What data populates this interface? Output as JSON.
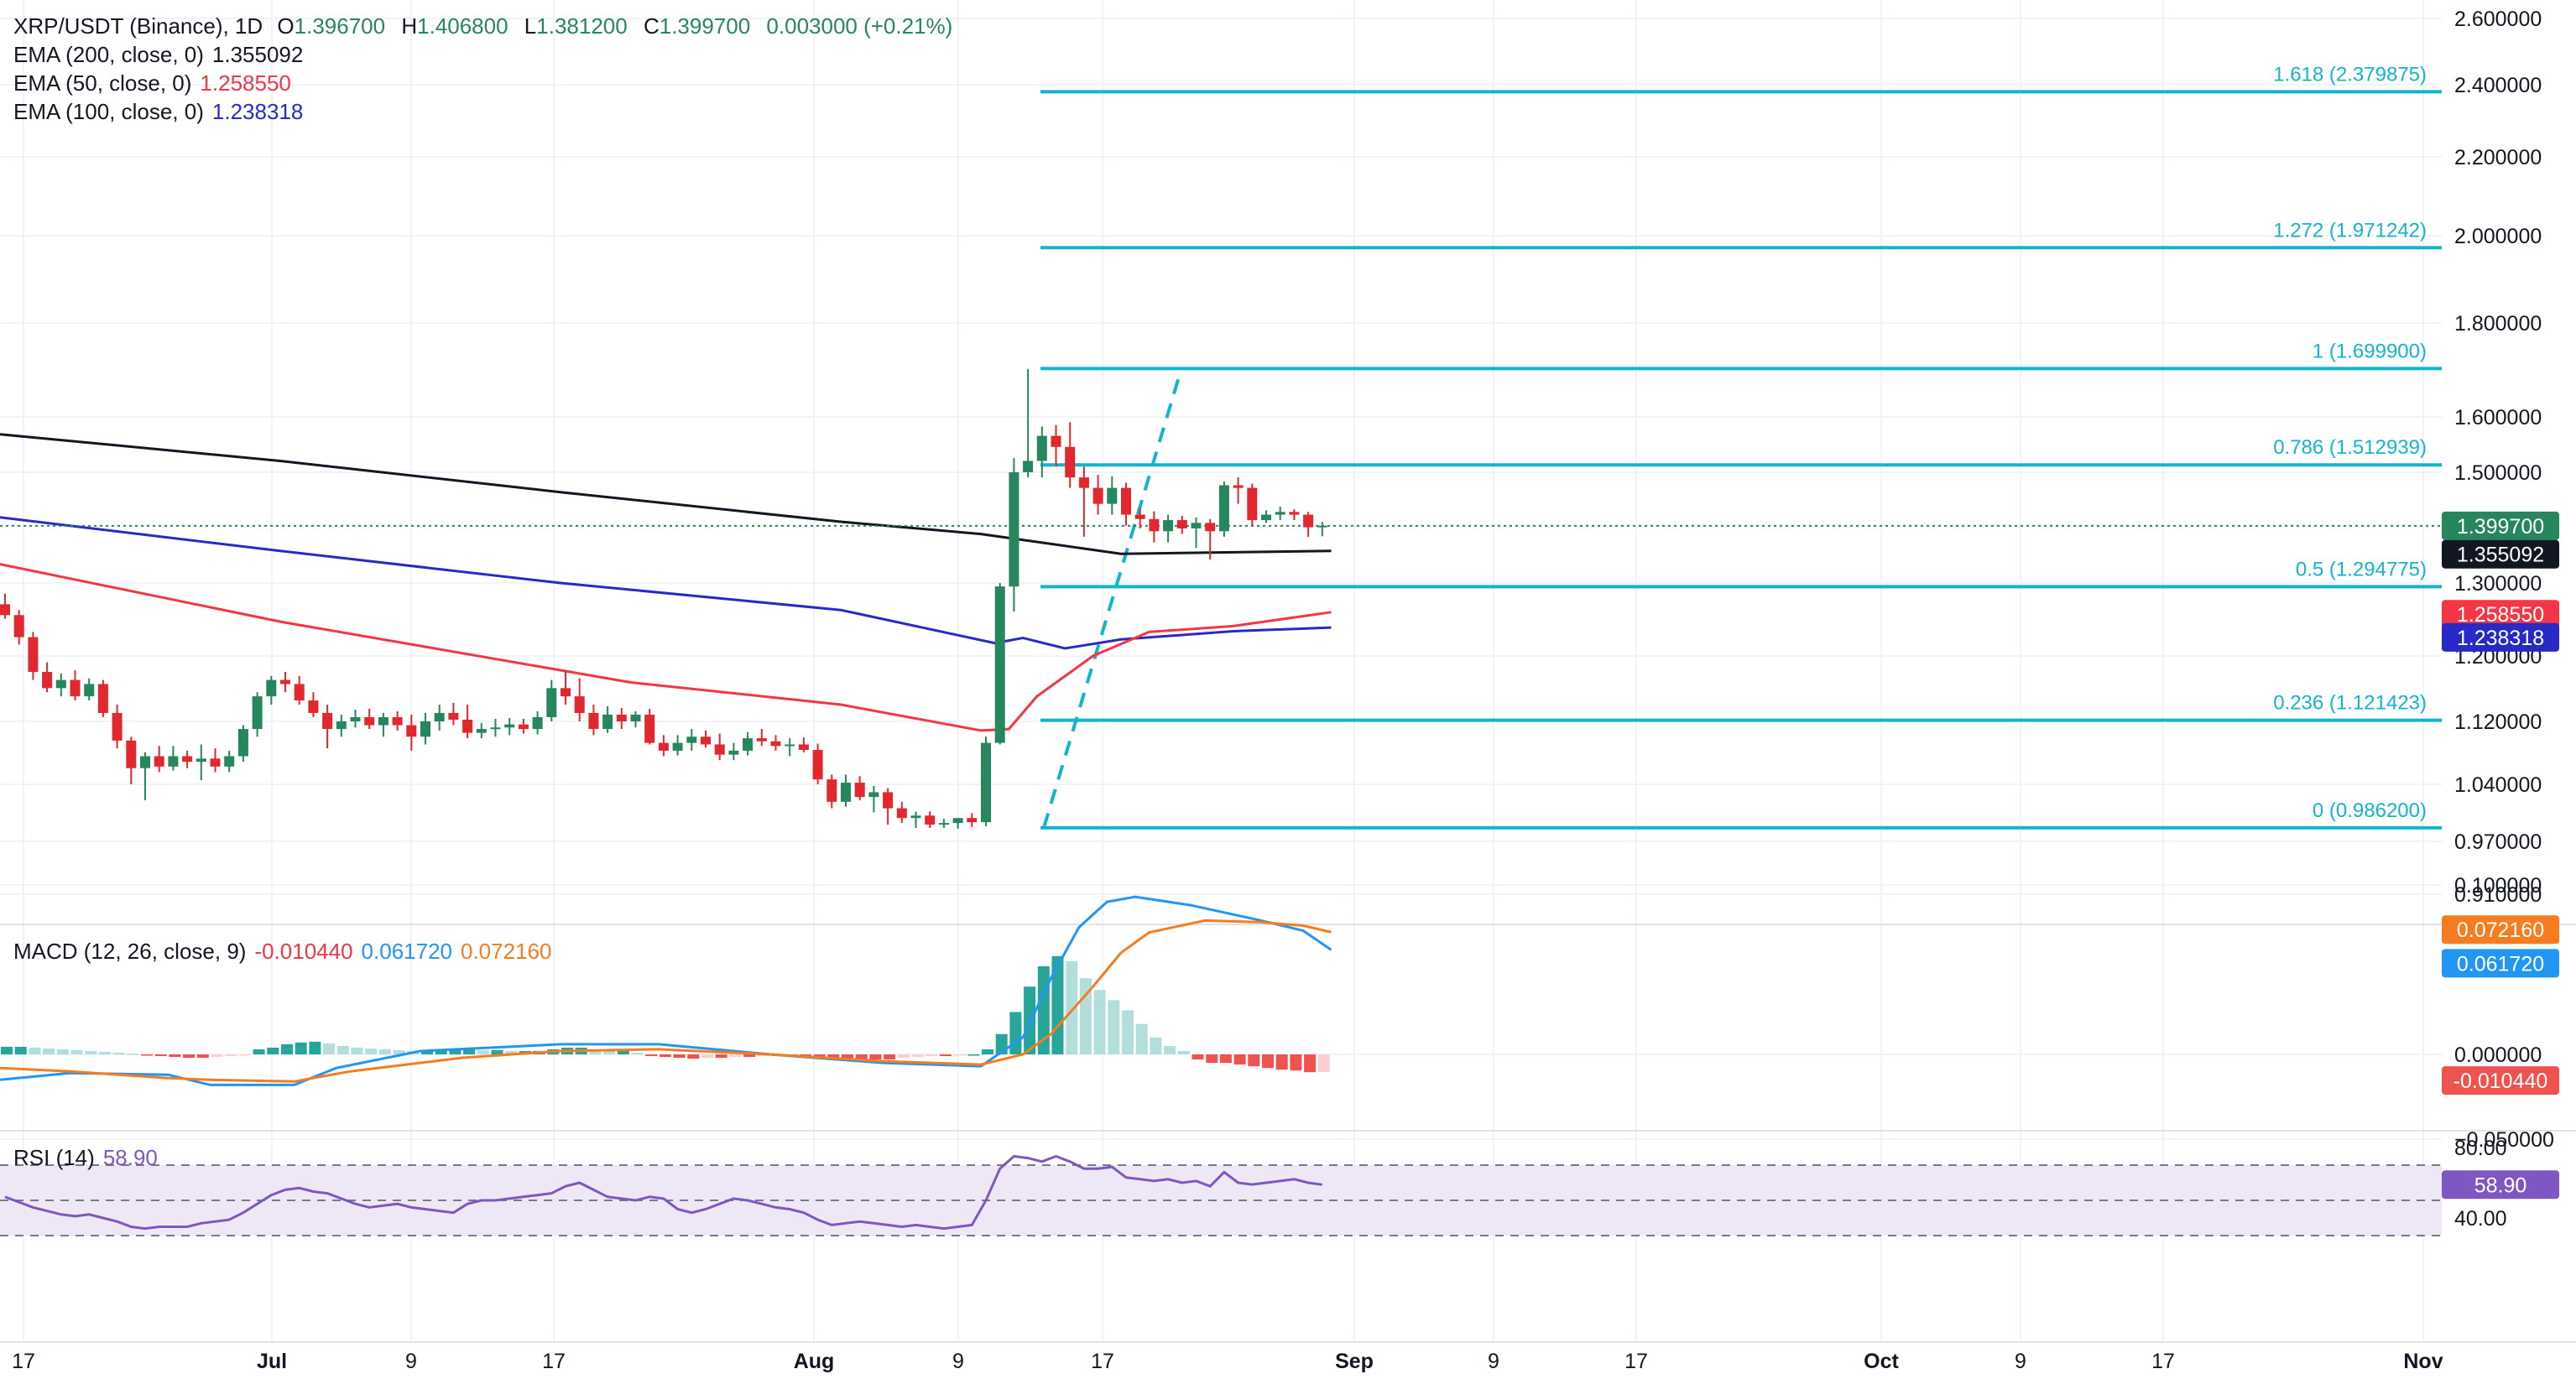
{
  "header": {
    "symbol": "XRP/USDT (Binance), 1D",
    "o_label": "O",
    "o_val": "1.396700",
    "h_label": "H",
    "h_val": "1.406800",
    "l_label": "L",
    "l_val": "1.381200",
    "c_label": "C",
    "c_val": "1.399700",
    "change": "0.003000 (+0.21%)",
    "ema200_label": "EMA (200, close, 0)",
    "ema200_val": "1.355092",
    "ema50_label": "EMA (50, close, 0)",
    "ema50_val": "1.258550",
    "ema100_label": "EMA (100, close, 0)",
    "ema100_val": "1.238318"
  },
  "macd_legend": {
    "label": "MACD (12, 26, close, 9)",
    "hist": "-0.010440",
    "macd": "0.061720",
    "signal": "0.072160"
  },
  "rsi_legend": {
    "label": "RSI (14)",
    "value": "58.90"
  },
  "colors": {
    "up": "#26875f",
    "down": "#e0282e",
    "fib": "#12b5c9",
    "ema200": "#131722",
    "ema50": "#f23645",
    "ema100": "#2929c8",
    "macd_line": "#2196f3",
    "signal_line": "#f57c1f",
    "hist_up_strong": "#26a69a",
    "hist_up_weak": "#b2dfdb",
    "hist_down_strong": "#ef5350",
    "hist_down_weak": "#ffcdd2",
    "rsi": "#7e57c2",
    "rsi_band": "#ede7f6"
  },
  "price_axis": {
    "ticks": [
      "2.600000",
      "2.400000",
      "2.200000",
      "2.000000",
      "1.800000",
      "1.600000",
      "1.500000",
      "1.300000",
      "1.200000",
      "1.120000",
      "1.040000",
      "0.970000",
      "0.910000"
    ],
    "current_price": "1.399700",
    "ema200_tag": "1.355092",
    "ema50_tag": "1.258550",
    "ema100_tag": "1.238318"
  },
  "macd_axis": {
    "ticks": [
      "0.100000",
      "0.000000",
      "−0.050000"
    ],
    "tags": [
      "0.072160",
      "0.061720",
      "-0.010440"
    ]
  },
  "rsi_axis": {
    "ticks": [
      "80.00",
      "40.00"
    ],
    "tag": "58.90"
  },
  "time_axis": [
    "17",
    "Jul",
    "9",
    "17",
    "Aug",
    "9",
    "17",
    "Sep",
    "9",
    "17",
    "Oct",
    "9",
    "17",
    "Nov"
  ],
  "fib_labels": [
    "1.618 (2.379875)",
    "1.272 (1.971242)",
    "1 (1.699900)",
    "0.786 (1.512939)",
    "0.5 (1.294775)",
    "0.236 (1.121423)",
    "0 (0.986200)"
  ],
  "chart_data": {
    "type": "candlestick",
    "title": "XRP/USDT (Binance), 1D",
    "x_start": "Jun 17",
    "x_end": "Nov",
    "candles": [
      [
        1.27,
        1.285,
        1.25,
        1.255
      ],
      [
        1.255,
        1.262,
        1.215,
        1.225
      ],
      [
        1.225,
        1.232,
        1.17,
        1.18
      ],
      [
        1.18,
        1.192,
        1.155,
        1.16
      ],
      [
        1.16,
        1.178,
        1.15,
        1.17
      ],
      [
        1.17,
        1.182,
        1.145,
        1.15
      ],
      [
        1.15,
        1.172,
        1.145,
        1.165
      ],
      [
        1.165,
        1.17,
        1.125,
        1.13
      ],
      [
        1.13,
        1.14,
        1.085,
        1.095
      ],
      [
        1.095,
        1.1,
        1.04,
        1.06
      ],
      [
        1.06,
        1.08,
        1.02,
        1.075
      ],
      [
        1.075,
        1.088,
        1.055,
        1.062
      ],
      [
        1.062,
        1.088,
        1.057,
        1.075
      ],
      [
        1.075,
        1.082,
        1.06,
        1.068
      ],
      [
        1.068,
        1.09,
        1.045,
        1.072
      ],
      [
        1.072,
        1.085,
        1.055,
        1.062
      ],
      [
        1.062,
        1.082,
        1.055,
        1.075
      ],
      [
        1.075,
        1.115,
        1.068,
        1.11
      ],
      [
        1.11,
        1.155,
        1.1,
        1.15
      ],
      [
        1.15,
        1.175,
        1.14,
        1.17
      ],
      [
        1.17,
        1.18,
        1.155,
        1.165
      ],
      [
        1.165,
        1.175,
        1.14,
        1.145
      ],
      [
        1.145,
        1.155,
        1.125,
        1.13
      ],
      [
        1.13,
        1.14,
        1.085,
        1.11
      ],
      [
        1.11,
        1.128,
        1.1,
        1.12
      ],
      [
        1.12,
        1.134,
        1.112,
        1.125
      ],
      [
        1.125,
        1.135,
        1.11,
        1.115
      ],
      [
        1.115,
        1.13,
        1.1,
        1.125
      ],
      [
        1.125,
        1.132,
        1.108,
        1.115
      ],
      [
        1.115,
        1.128,
        1.082,
        1.1
      ],
      [
        1.1,
        1.13,
        1.09,
        1.12
      ],
      [
        1.12,
        1.14,
        1.108,
        1.13
      ],
      [
        1.13,
        1.142,
        1.115,
        1.122
      ],
      [
        1.122,
        1.14,
        1.098,
        1.105
      ],
      [
        1.105,
        1.118,
        1.098,
        1.11
      ],
      [
        1.11,
        1.123,
        1.1,
        1.112
      ],
      [
        1.112,
        1.124,
        1.102,
        1.116
      ],
      [
        1.116,
        1.123,
        1.104,
        1.11
      ],
      [
        1.11,
        1.132,
        1.103,
        1.125
      ],
      [
        1.125,
        1.17,
        1.12,
        1.16
      ],
      [
        1.16,
        1.182,
        1.14,
        1.15
      ],
      [
        1.15,
        1.172,
        1.12,
        1.13
      ],
      [
        1.13,
        1.14,
        1.102,
        1.11
      ],
      [
        1.11,
        1.138,
        1.105,
        1.128
      ],
      [
        1.128,
        1.136,
        1.11,
        1.12
      ],
      [
        1.12,
        1.132,
        1.112,
        1.128
      ],
      [
        1.128,
        1.135,
        1.09,
        1.092
      ],
      [
        1.092,
        1.102,
        1.075,
        1.082
      ],
      [
        1.082,
        1.102,
        1.076,
        1.092
      ],
      [
        1.092,
        1.11,
        1.082,
        1.1
      ],
      [
        1.1,
        1.108,
        1.086,
        1.09
      ],
      [
        1.09,
        1.104,
        1.07,
        1.077
      ],
      [
        1.077,
        1.092,
        1.07,
        1.082
      ],
      [
        1.082,
        1.106,
        1.076,
        1.098
      ],
      [
        1.098,
        1.11,
        1.088,
        1.094
      ],
      [
        1.094,
        1.102,
        1.082,
        1.088
      ],
      [
        1.088,
        1.098,
        1.075,
        1.09
      ],
      [
        1.09,
        1.099,
        1.08,
        1.083
      ],
      [
        1.083,
        1.091,
        1.04,
        1.046
      ],
      [
        1.046,
        1.052,
        1.01,
        1.018
      ],
      [
        1.018,
        1.052,
        1.012,
        1.042
      ],
      [
        1.042,
        1.05,
        1.02,
        1.024
      ],
      [
        1.024,
        1.038,
        1.005,
        1.03
      ],
      [
        1.03,
        1.035,
        0.99,
        1.01
      ],
      [
        1.01,
        1.018,
        0.992,
        0.998
      ],
      [
        0.998,
        1.006,
        0.986,
        1.001
      ],
      [
        1.001,
        1.006,
        0.986,
        0.99
      ],
      [
        0.99,
        0.997,
        0.986,
        0.992
      ],
      [
        0.992,
        0.998,
        0.985,
        0.998
      ],
      [
        0.998,
        1.004,
        0.987,
        0.993
      ],
      [
        0.993,
        1.1,
        0.988,
        1.092
      ],
      [
        1.092,
        1.3,
        1.09,
        1.295
      ],
      [
        1.295,
        1.525,
        1.26,
        1.5
      ],
      [
        1.5,
        1.699,
        1.49,
        1.52
      ],
      [
        1.52,
        1.582,
        1.49,
        1.565
      ],
      [
        1.565,
        1.585,
        1.51,
        1.545
      ],
      [
        1.545,
        1.59,
        1.47,
        1.49
      ],
      [
        1.49,
        1.51,
        1.38,
        1.47
      ],
      [
        1.47,
        1.495,
        1.42,
        1.44
      ],
      [
        1.44,
        1.492,
        1.42,
        1.47
      ],
      [
        1.47,
        1.48,
        1.4,
        1.42
      ],
      [
        1.42,
        1.432,
        1.395,
        1.412
      ],
      [
        1.412,
        1.426,
        1.37,
        1.39
      ],
      [
        1.39,
        1.42,
        1.37,
        1.41
      ],
      [
        1.41,
        1.418,
        1.385,
        1.395
      ],
      [
        1.395,
        1.415,
        1.36,
        1.405
      ],
      [
        1.405,
        1.412,
        1.34,
        1.39
      ],
      [
        1.39,
        1.482,
        1.38,
        1.475
      ],
      [
        1.475,
        1.49,
        1.44,
        1.47
      ],
      [
        1.47,
        1.478,
        1.4,
        1.41
      ],
      [
        1.41,
        1.428,
        1.405,
        1.42
      ],
      [
        1.42,
        1.435,
        1.41,
        1.425
      ],
      [
        1.425,
        1.43,
        1.41,
        1.42
      ],
      [
        1.42,
        1.425,
        1.38,
        1.397
      ],
      [
        1.397,
        1.407,
        1.381,
        1.4
      ]
    ],
    "ema200": [
      [
        0,
        1.568
      ],
      [
        20,
        1.52
      ],
      [
        40,
        1.462
      ],
      [
        60,
        1.407
      ],
      [
        70,
        1.385
      ],
      [
        80,
        1.35
      ],
      [
        95,
        1.355
      ]
    ],
    "ema50": [
      [
        0,
        1.332
      ],
      [
        20,
        1.246
      ],
      [
        45,
        1.167
      ],
      [
        60,
        1.14
      ],
      [
        70,
        1.108
      ],
      [
        72,
        1.11
      ],
      [
        74,
        1.15
      ],
      [
        78,
        1.2
      ],
      [
        82,
        1.232
      ],
      [
        88,
        1.24
      ],
      [
        95,
        1.259
      ]
    ],
    "ema100": [
      [
        0,
        1.415
      ],
      [
        20,
        1.355
      ],
      [
        40,
        1.3
      ],
      [
        60,
        1.262
      ],
      [
        71,
        1.217
      ],
      [
        73,
        1.224
      ],
      [
        76,
        1.21
      ],
      [
        80,
        1.222
      ],
      [
        88,
        1.233
      ],
      [
        95,
        1.238
      ]
    ],
    "fib_levels": [
      {
        "ratio": 1.618,
        "price": 2.379875
      },
      {
        "ratio": 1.272,
        "price": 1.971242
      },
      {
        "ratio": 1,
        "price": 1.6999
      },
      {
        "ratio": 0.786,
        "price": 1.512939
      },
      {
        "ratio": 0.5,
        "price": 1.294775
      },
      {
        "ratio": 0.236,
        "price": 1.121423
      },
      {
        "ratio": 0,
        "price": 0.9862
      }
    ],
    "macd_hist": [
      0.0045,
      0.0045,
      0.004,
      0.0035,
      0.003,
      0.0025,
      0.002,
      0.0015,
      0.001,
      0.0005,
      -0.0005,
      -0.001,
      -0.0015,
      -0.002,
      -0.002,
      -0.0015,
      -0.001,
      -0.0005,
      0.003,
      0.004,
      0.006,
      0.007,
      0.0075,
      0.0065,
      0.005,
      0.004,
      0.0035,
      0.003,
      0.0025,
      0.002,
      0.002,
      0.0025,
      0.003,
      0.003,
      0.0025,
      0.0025,
      0.002,
      0.002,
      0.002,
      0.003,
      0.004,
      0.004,
      0.003,
      0.002,
      0.002,
      0.001,
      -0.001,
      -0.0015,
      -0.002,
      -0.0025,
      -0.002,
      -0.002,
      -0.0015,
      -0.0015,
      -0.001,
      -0.001,
      -0.001,
      -0.0015,
      -0.002,
      -0.0025,
      -0.003,
      -0.003,
      -0.003,
      -0.003,
      -0.002,
      -0.0015,
      -0.001,
      -0.001,
      -0.0005,
      0,
      0.003,
      0.012,
      0.025,
      0.04,
      0.052,
      0.058,
      0.055,
      0.045,
      0.038,
      0.032,
      0.026,
      0.018,
      0.01,
      0.005,
      0.002,
      -0.003,
      -0.005,
      -0.005,
      -0.006,
      -0.007,
      -0.008,
      -0.009,
      -0.0095,
      -0.0105,
      -0.0104
    ],
    "macd_line": [
      [
        0,
        -0.015
      ],
      [
        5,
        -0.011
      ],
      [
        12,
        -0.012
      ],
      [
        15,
        -0.018
      ],
      [
        21,
        -0.018
      ],
      [
        24,
        -0.008
      ],
      [
        30,
        0.002
      ],
      [
        40,
        0.006
      ],
      [
        47,
        0.006
      ],
      [
        55,
        0.0
      ],
      [
        63,
        -0.005
      ],
      [
        70,
        -0.007
      ],
      [
        73,
        0.01
      ],
      [
        75,
        0.045
      ],
      [
        77,
        0.075
      ],
      [
        79,
        0.09
      ],
      [
        81,
        0.093
      ],
      [
        85,
        0.088
      ],
      [
        90,
        0.079
      ],
      [
        93,
        0.073
      ],
      [
        95,
        0.0617
      ]
    ],
    "signal_line": [
      [
        0,
        -0.008
      ],
      [
        5,
        -0.01
      ],
      [
        12,
        -0.014
      ],
      [
        15,
        -0.015
      ],
      [
        21,
        -0.016
      ],
      [
        25,
        -0.01
      ],
      [
        33,
        -0.002
      ],
      [
        40,
        0.002
      ],
      [
        47,
        0.003
      ],
      [
        55,
        0.0
      ],
      [
        63,
        -0.004
      ],
      [
        70,
        -0.006
      ],
      [
        73,
        0.0
      ],
      [
        75,
        0.012
      ],
      [
        78,
        0.04
      ],
      [
        80,
        0.06
      ],
      [
        82,
        0.072
      ],
      [
        86,
        0.079
      ],
      [
        90,
        0.078
      ],
      [
        93,
        0.076
      ],
      [
        95,
        0.07216
      ]
    ],
    "rsi": [
      52,
      49,
      46,
      44,
      42,
      41,
      42,
      40,
      38,
      35,
      34,
      35,
      35,
      35,
      37,
      38,
      39,
      43,
      48,
      53,
      56,
      57,
      55,
      54,
      51,
      48,
      46,
      47,
      48,
      46,
      45,
      44,
      43,
      48,
      50,
      50,
      51,
      52,
      53,
      54,
      58,
      60,
      56,
      52,
      51,
      50,
      52,
      51,
      45,
      43,
      45,
      48,
      51,
      50,
      48,
      46,
      45,
      43,
      39,
      36,
      37,
      38,
      37,
      36,
      35,
      36,
      35,
      34,
      35,
      36,
      50,
      68,
      75,
      74,
      72,
      75,
      72,
      68,
      68,
      69,
      63,
      62,
      61,
      62,
      60,
      61,
      58,
      66,
      60,
      59,
      60,
      61,
      62,
      60,
      58.9
    ],
    "rsi_band": [
      30,
      70
    ],
    "rsi_mid": 50
  }
}
